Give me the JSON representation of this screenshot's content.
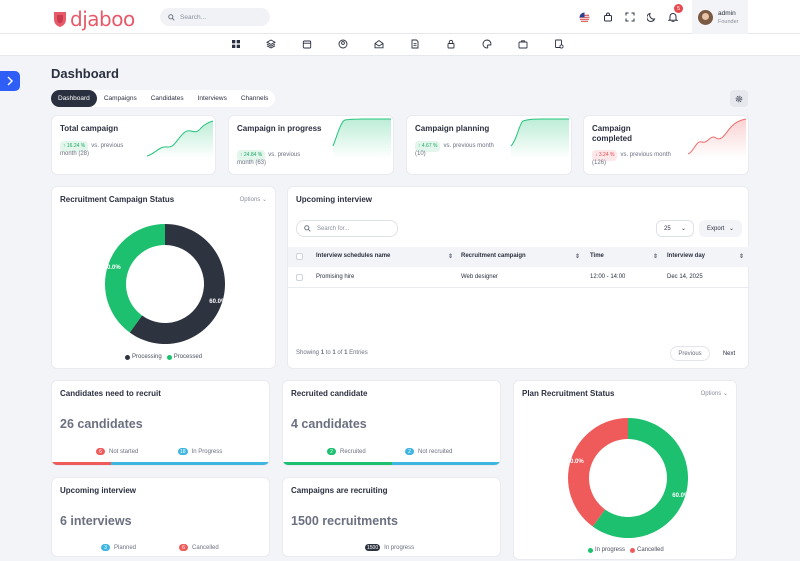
{
  "app": {
    "logo_text": "djaboo"
  },
  "topbar": {
    "search_placeholder": "Search...",
    "notification_count": "5",
    "user_name": "admin",
    "user_role": "Founder",
    "icons": [
      "flag-us-icon",
      "shopping-bag-icon",
      "fullscreen-icon",
      "moon-icon",
      "bell-icon"
    ]
  },
  "navbar": {
    "icons": [
      "dashboard-icon",
      "layers-icon",
      "calendar-icon",
      "users-icon",
      "inbox-icon",
      "document-icon",
      "lock-icon",
      "palette-icon",
      "briefcase-icon",
      "invoice-icon"
    ]
  },
  "page": {
    "title": "Dashboard"
  },
  "tabs": [
    {
      "label": "Dashboard",
      "active": true
    },
    {
      "label": "Campaigns",
      "active": false
    },
    {
      "label": "Candidates",
      "active": false
    },
    {
      "label": "Interviews",
      "active": false
    },
    {
      "label": "Channels",
      "active": false
    }
  ],
  "stats": [
    {
      "title": "Total campaign",
      "change": "16.24 %",
      "direction": "up",
      "suffix": "vs. previous",
      "suffix2": "month (28)",
      "color": "#22c47a"
    },
    {
      "title": "Campaign in progress",
      "change": "24.84 %",
      "direction": "up",
      "suffix": "vs. previous",
      "suffix2": "month (63)",
      "color": "#22c47a"
    },
    {
      "title": "Campaign planning",
      "change": "4.67 %",
      "direction": "up",
      "suffix": "vs. previous month",
      "suffix2": "(10)",
      "color": "#22c47a"
    },
    {
      "title": "Campaign completed",
      "change": "3.24 %",
      "direction": "down",
      "suffix": "vs. previous month",
      "suffix2": "(126)",
      "color": "#ef6b6b"
    }
  ],
  "recruitment_status": {
    "title": "Recruitment Campaign Status",
    "options_label": "Options",
    "legend": [
      {
        "label": "Processing",
        "color": "#2e3340"
      },
      {
        "label": "Processed",
        "color": "#1cc06f"
      }
    ],
    "processing_label": "60.0%",
    "processed_label": "40.0%"
  },
  "upcoming_interview": {
    "title": "Upcoming interview",
    "search_placeholder": "Search for...",
    "page_size": "25",
    "export_label": "Export",
    "columns": [
      "Interview schedules name",
      "Recruitment campaign",
      "Time",
      "Interview day"
    ],
    "rows": [
      {
        "name": "Promising hire",
        "campaign": "Web designer",
        "time": "12:00 - 14:00",
        "day": "Dec 14, 2025"
      }
    ],
    "footer_prefix": "Showing ",
    "footer_from": "1",
    "footer_mid1": " to ",
    "footer_to": "1",
    "footer_mid2": " of ",
    "footer_total": "1",
    "footer_suffix": " Entries",
    "prev_label": "Previous",
    "next_label": "Next"
  },
  "candidates_need": {
    "title": "Candidates need to recruit",
    "value": "26 candidates",
    "items": [
      {
        "count": "6",
        "label": "Not started",
        "color": "#ef5b5b"
      },
      {
        "count": "18",
        "label": "In Progress",
        "color": "#3fb6df"
      }
    ],
    "progress_fraction": 0.27
  },
  "recruited": {
    "title": "Recruited candidate",
    "value": "4 candidates",
    "items": [
      {
        "count": "2",
        "label": "Recruited",
        "color": "#1cc06f"
      },
      {
        "count": "2",
        "label": "Not recruited",
        "color": "#3fb6df"
      }
    ],
    "progress_fraction": 0.5
  },
  "plan_status": {
    "title": "Plan Recruitment Status",
    "options_label": "Options",
    "legend": [
      {
        "label": "In progress",
        "color": "#1cc06f"
      },
      {
        "label": "Cancelled",
        "color": "#ef5b5b"
      }
    ],
    "inprogress_label": "60.0%",
    "cancelled_label": "40.0%"
  },
  "upcoming_interview_card": {
    "title": "Upcoming interview",
    "value": "6 interviews",
    "items": [
      {
        "count": "3",
        "label": "Planned",
        "color": "#3fb6df"
      },
      {
        "count": "6",
        "label": "Cancelled",
        "color": "#ef5b5b"
      }
    ]
  },
  "campaigns_recruiting": {
    "title": "Campaigns are recruiting",
    "value": "1500 recruitments",
    "items": [
      {
        "count": "1500",
        "label": "In progress",
        "color": "#2e3340"
      }
    ]
  },
  "chart_data": [
    {
      "type": "pie",
      "title": "Recruitment Campaign Status",
      "categories": [
        "Processing",
        "Processed"
      ],
      "values": [
        60.0,
        40.0
      ],
      "colors": [
        "#2e3340",
        "#1cc06f"
      ]
    },
    {
      "type": "pie",
      "title": "Plan Recruitment Status",
      "categories": [
        "In progress",
        "Cancelled"
      ],
      "values": [
        60.0,
        40.0
      ],
      "colors": [
        "#1cc06f",
        "#ef5b5b"
      ]
    }
  ]
}
